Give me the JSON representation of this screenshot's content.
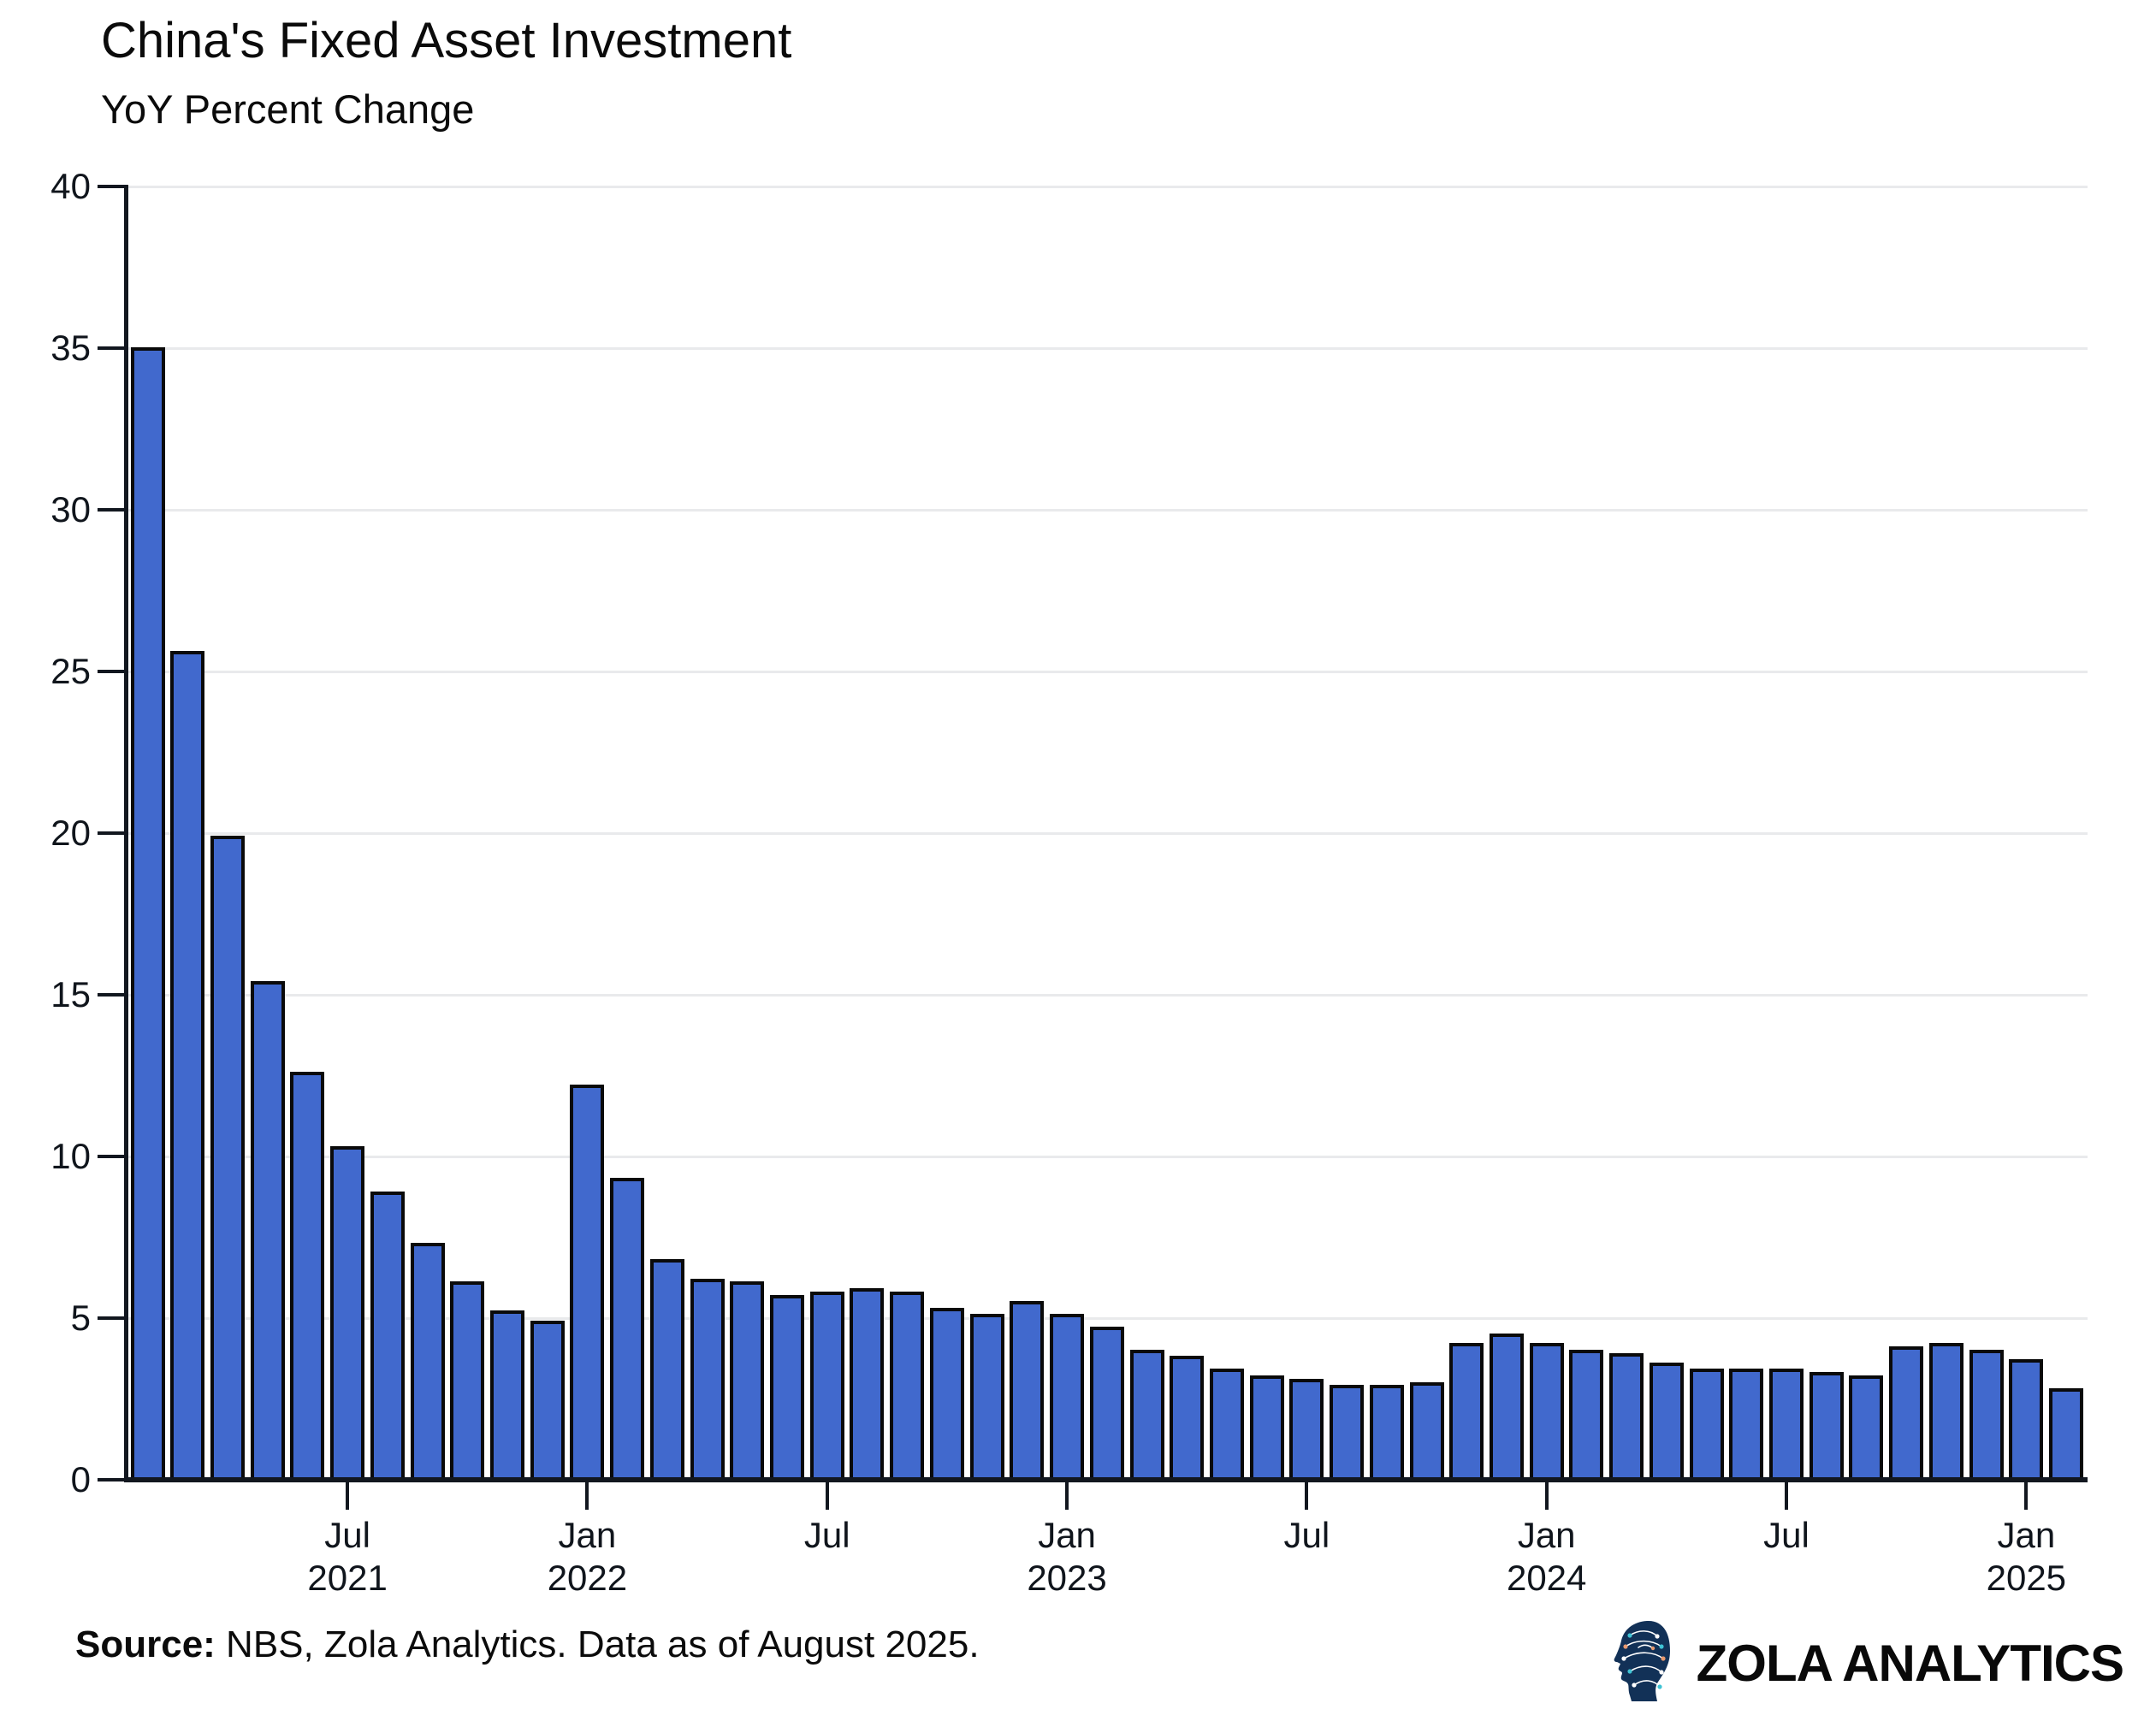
{
  "header": {
    "title": "China's Fixed Asset Investment",
    "subtitle": "YoY Percent Change"
  },
  "footer": {
    "source_label": "Source:",
    "source_text": " NBS, Zola Analytics. Data as of August 2025.",
    "brand_name": "ZOLA ANALYTICS",
    "brand_icon": "circuit-head-logo"
  },
  "chart_data": {
    "type": "bar",
    "title": "China's Fixed Asset Investment",
    "subtitle": "YoY Percent Change",
    "ylabel": "YoY Percent Change",
    "ylim": [
      0,
      40
    ],
    "ytick_step": 5,
    "y_ticks": [
      0,
      5,
      10,
      15,
      20,
      25,
      30,
      35,
      40
    ],
    "grid": true,
    "legend": "none",
    "bar_color": "#4169cd",
    "bar_border_color": "#0a0a0a",
    "axis_color": "#12171f",
    "gridline_color": "#e9eaec",
    "values": [
      35.0,
      25.6,
      19.9,
      15.4,
      12.6,
      10.3,
      8.9,
      7.3,
      6.1,
      5.2,
      4.9,
      12.2,
      9.3,
      6.8,
      6.2,
      6.1,
      5.7,
      5.8,
      5.9,
      5.8,
      5.3,
      5.1,
      5.5,
      5.1,
      4.7,
      4.0,
      3.8,
      3.4,
      3.2,
      3.1,
      2.9,
      2.9,
      3.0,
      4.2,
      4.5,
      4.2,
      4.0,
      3.9,
      3.6,
      3.4,
      3.4,
      3.4,
      3.3,
      3.2,
      4.1,
      4.2,
      4.0,
      3.7,
      2.8
    ],
    "x_ticks": [
      {
        "bar_index": 5,
        "month": "Jul",
        "year": "2021"
      },
      {
        "bar_index": 11,
        "month": "Jan",
        "year": "2022"
      },
      {
        "bar_index": 17,
        "month": "Jul",
        "year": ""
      },
      {
        "bar_index": 23,
        "month": "Jan",
        "year": "2023"
      },
      {
        "bar_index": 29,
        "month": "Jul",
        "year": ""
      },
      {
        "bar_index": 35,
        "month": "Jan",
        "year": "2024"
      },
      {
        "bar_index": 41,
        "month": "Jul",
        "year": ""
      },
      {
        "bar_index": 47,
        "month": "Jan",
        "year": "2025"
      }
    ]
  }
}
